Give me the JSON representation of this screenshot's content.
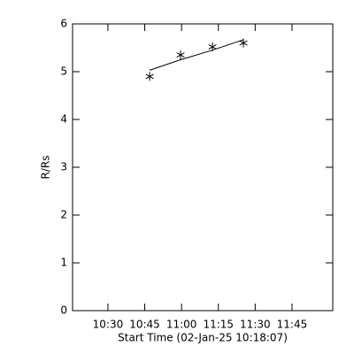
{
  "chart_data": {
    "type": "line",
    "x_label": "Start Time (02-Jan-25 10:18:07)",
    "y_label": "R/Rs",
    "x": [
      47.0,
      59.6,
      72.6,
      85.2
    ],
    "series": [
      {
        "color": "#000000",
        "marker": "asterisk",
        "values": [
          4.9,
          5.35,
          5.52,
          5.6
        ]
      },
      {
        "color": "#000000",
        "marker": "none",
        "values": [
          5.03,
          5.25,
          5.45,
          5.67
        ]
      }
    ],
    "xlim": [
      15.6,
      121.6
    ],
    "xticks": [
      {
        "value": 30,
        "label": "10:30"
      },
      {
        "value": 45,
        "label": "10:45"
      },
      {
        "value": 60,
        "label": "11:00"
      },
      {
        "value": 75,
        "label": "11:15"
      },
      {
        "value": 90,
        "label": "11:30"
      },
      {
        "value": 105,
        "label": "11:45"
      }
    ],
    "ylim": [
      0,
      6
    ],
    "yticks": [
      0,
      1,
      2,
      3,
      4,
      5,
      6
    ]
  }
}
